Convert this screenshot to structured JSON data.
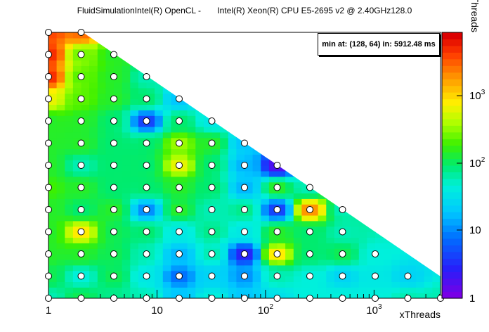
{
  "window": {
    "title": "FluidSimulationIntel(R) OpenCL -       Intel(R) Xeon(R) CPU E5-2695 v2 @ 2.40GHz128.0"
  },
  "stats": {
    "text": "min at: (128, 64) in: 5912.48 ms"
  },
  "chart_data": {
    "type": "heatmap",
    "title": "FluidSimulationIntel(R) OpenCL -       Intel(R) Xeon(R) CPU E5-2695 v2 @ 2.40GHz128.0",
    "xlabel": "xThreads",
    "ylabel": "yThreads",
    "x_scale": "log2 grid",
    "xlim": [
      1,
      4096
    ],
    "ylim": [
      1,
      4096
    ],
    "x_ticks": [
      {
        "base": "1",
        "exp": ""
      },
      {
        "base": "10",
        "exp": ""
      },
      {
        "base": "10",
        "exp": "2"
      },
      {
        "base": "10",
        "exp": "3"
      }
    ],
    "z_ticks": [
      {
        "base": "1",
        "exp": ""
      },
      {
        "base": "10",
        "exp": ""
      },
      {
        "base": "10",
        "exp": "2"
      },
      {
        "base": "10",
        "exp": "3"
      }
    ],
    "points": [
      {
        "x": 1,
        "y": 1,
        "v": 0.45
      },
      {
        "x": 2,
        "y": 1,
        "v": 0.52
      },
      {
        "x": 4,
        "y": 1,
        "v": 0.48
      },
      {
        "x": 8,
        "y": 1,
        "v": 0.45
      },
      {
        "x": 16,
        "y": 1,
        "v": 0.32
      },
      {
        "x": 32,
        "y": 1,
        "v": 0.42
      },
      {
        "x": 64,
        "y": 1,
        "v": 0.32
      },
      {
        "x": 128,
        "y": 1,
        "v": 0.38
      },
      {
        "x": 256,
        "y": 1,
        "v": 0.42
      },
      {
        "x": 512,
        "y": 1,
        "v": 0.42
      },
      {
        "x": 1024,
        "y": 1,
        "v": 0.42
      },
      {
        "x": 2048,
        "y": 1,
        "v": 0.45
      },
      {
        "x": 4096,
        "y": 1,
        "v": 0.45
      },
      {
        "x": 1,
        "y": 2,
        "v": 0.52
      },
      {
        "x": 2,
        "y": 2,
        "v": 0.42
      },
      {
        "x": 4,
        "y": 2,
        "v": 0.52
      },
      {
        "x": 8,
        "y": 2,
        "v": 0.4
      },
      {
        "x": 16,
        "y": 2,
        "v": 0.22
      },
      {
        "x": 32,
        "y": 2,
        "v": 0.35
      },
      {
        "x": 64,
        "y": 2,
        "v": 0.26
      },
      {
        "x": 128,
        "y": 2,
        "v": 0.45
      },
      {
        "x": 256,
        "y": 2,
        "v": 0.42
      },
      {
        "x": 512,
        "y": 2,
        "v": 0.35
      },
      {
        "x": 1024,
        "y": 2,
        "v": 0.4
      },
      {
        "x": 2048,
        "y": 2,
        "v": 0.35
      },
      {
        "x": 1,
        "y": 4,
        "v": 0.55
      },
      {
        "x": 2,
        "y": 4,
        "v": 0.55
      },
      {
        "x": 4,
        "y": 4,
        "v": 0.52
      },
      {
        "x": 8,
        "y": 4,
        "v": 0.45
      },
      {
        "x": 16,
        "y": 4,
        "v": 0.3
      },
      {
        "x": 32,
        "y": 4,
        "v": 0.45
      },
      {
        "x": 64,
        "y": 4,
        "v": 0.1
      },
      {
        "x": 128,
        "y": 4,
        "v": 0.75
      },
      {
        "x": 256,
        "y": 4,
        "v": 0.5
      },
      {
        "x": 512,
        "y": 4,
        "v": 0.52
      },
      {
        "x": 1024,
        "y": 4,
        "v": 0.42
      },
      {
        "x": 1,
        "y": 8,
        "v": 0.55
      },
      {
        "x": 2,
        "y": 8,
        "v": 0.75
      },
      {
        "x": 4,
        "y": 8,
        "v": 0.52
      },
      {
        "x": 8,
        "y": 8,
        "v": 0.5
      },
      {
        "x": 16,
        "y": 8,
        "v": 0.4
      },
      {
        "x": 32,
        "y": 8,
        "v": 0.48
      },
      {
        "x": 64,
        "y": 8,
        "v": 0.4
      },
      {
        "x": 128,
        "y": 8,
        "v": 0.55
      },
      {
        "x": 256,
        "y": 8,
        "v": 0.5
      },
      {
        "x": 512,
        "y": 8,
        "v": 0.45
      },
      {
        "x": 1,
        "y": 16,
        "v": 0.55
      },
      {
        "x": 2,
        "y": 16,
        "v": 0.5
      },
      {
        "x": 4,
        "y": 16,
        "v": 0.55
      },
      {
        "x": 8,
        "y": 16,
        "v": 0.25
      },
      {
        "x": 16,
        "y": 16,
        "v": 0.55
      },
      {
        "x": 32,
        "y": 16,
        "v": 0.45
      },
      {
        "x": 64,
        "y": 16,
        "v": 0.48
      },
      {
        "x": 128,
        "y": 16,
        "v": 0.15
      },
      {
        "x": 256,
        "y": 16,
        "v": 0.85
      },
      {
        "x": 512,
        "y": 16,
        "v": 0.45
      },
      {
        "x": 1,
        "y": 32,
        "v": 0.58
      },
      {
        "x": 2,
        "y": 32,
        "v": 0.55
      },
      {
        "x": 4,
        "y": 32,
        "v": 0.5
      },
      {
        "x": 8,
        "y": 32,
        "v": 0.5
      },
      {
        "x": 16,
        "y": 32,
        "v": 0.55
      },
      {
        "x": 32,
        "y": 32,
        "v": 0.5
      },
      {
        "x": 64,
        "y": 32,
        "v": 0.3
      },
      {
        "x": 128,
        "y": 32,
        "v": 0.55
      },
      {
        "x": 256,
        "y": 32,
        "v": 0.45
      },
      {
        "x": 1,
        "y": 64,
        "v": 0.55
      },
      {
        "x": 2,
        "y": 64,
        "v": 0.45
      },
      {
        "x": 4,
        "y": 64,
        "v": 0.5
      },
      {
        "x": 8,
        "y": 64,
        "v": 0.5
      },
      {
        "x": 16,
        "y": 64,
        "v": 0.72
      },
      {
        "x": 32,
        "y": 64,
        "v": 0.5
      },
      {
        "x": 64,
        "y": 64,
        "v": 0.3
      },
      {
        "x": 128,
        "y": 64,
        "v": 0.05
      },
      {
        "x": 1,
        "y": 128,
        "v": 0.55
      },
      {
        "x": 2,
        "y": 128,
        "v": 0.55
      },
      {
        "x": 4,
        "y": 128,
        "v": 0.5
      },
      {
        "x": 8,
        "y": 128,
        "v": 0.5
      },
      {
        "x": 16,
        "y": 128,
        "v": 0.65
      },
      {
        "x": 32,
        "y": 128,
        "v": 0.55
      },
      {
        "x": 64,
        "y": 128,
        "v": 0.32
      },
      {
        "x": 1,
        "y": 256,
        "v": 0.55
      },
      {
        "x": 2,
        "y": 256,
        "v": 0.55
      },
      {
        "x": 4,
        "y": 256,
        "v": 0.5
      },
      {
        "x": 8,
        "y": 256,
        "v": 0.15
      },
      {
        "x": 16,
        "y": 256,
        "v": 0.5
      },
      {
        "x": 32,
        "y": 256,
        "v": 0.4
      },
      {
        "x": 1,
        "y": 512,
        "v": 0.72
      },
      {
        "x": 2,
        "y": 512,
        "v": 0.6
      },
      {
        "x": 4,
        "y": 512,
        "v": 0.55
      },
      {
        "x": 8,
        "y": 512,
        "v": 0.5
      },
      {
        "x": 16,
        "y": 512,
        "v": 0.32
      },
      {
        "x": 1,
        "y": 1024,
        "v": 0.95
      },
      {
        "x": 2,
        "y": 1024,
        "v": 0.6
      },
      {
        "x": 4,
        "y": 1024,
        "v": 0.55
      },
      {
        "x": 8,
        "y": 1024,
        "v": 0.45
      },
      {
        "x": 1,
        "y": 2048,
        "v": 0.95
      },
      {
        "x": 2,
        "y": 2048,
        "v": 0.62
      },
      {
        "x": 4,
        "y": 2048,
        "v": 0.55
      },
      {
        "x": 1,
        "y": 4096,
        "v": 0.92
      },
      {
        "x": 2,
        "y": 4096,
        "v": 0.88
      }
    ]
  }
}
